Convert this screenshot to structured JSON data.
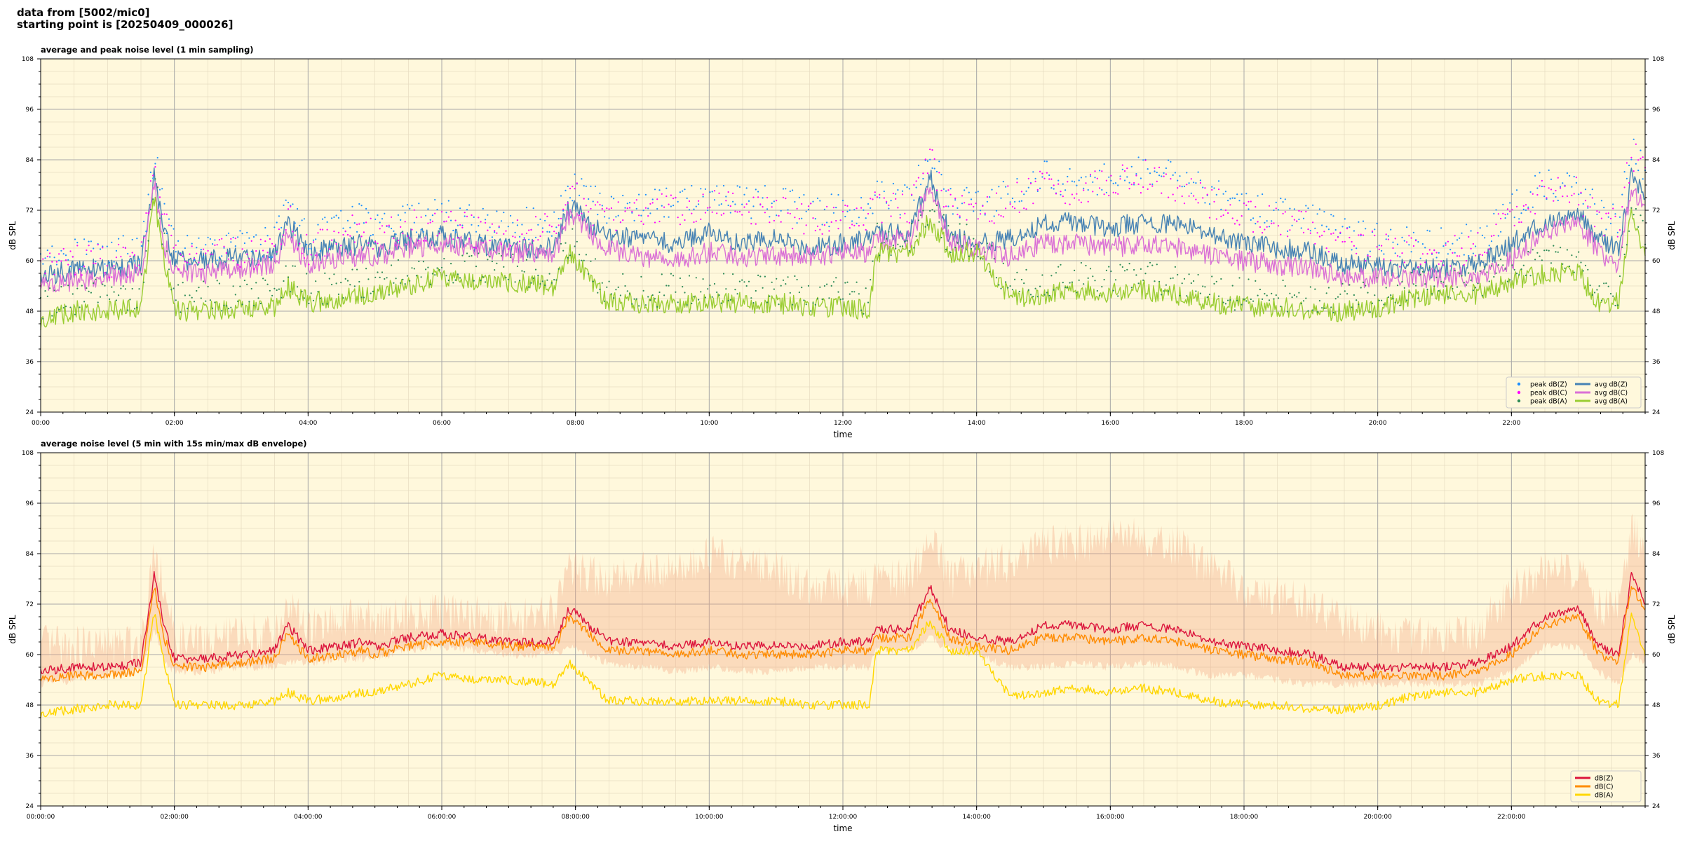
{
  "header": {
    "line1": "data from [5002/mic0]",
    "line2": "starting point is [20250409_000026]"
  },
  "colors": {
    "plot_background": "#fff8dc",
    "peak_z": "#1e90ff",
    "peak_c": "#ff00ff",
    "peak_a": "#2e8b57",
    "avg_z": "#4682b4",
    "avg_c": "#da70d6",
    "avg_a": "#9acd32",
    "z": "#dc143c",
    "c": "#ff8c00",
    "a": "#ffd700",
    "envelope": "#f4a582"
  },
  "chart_data": [
    {
      "type": "line",
      "title": "average and peak noise level (1 min sampling)",
      "xlabel": "time",
      "ylabel": "dB SPL",
      "ylim": [
        24,
        108
      ],
      "yticks": [
        24,
        36,
        48,
        60,
        72,
        84,
        96,
        108
      ],
      "xlim_hours": [
        0,
        24
      ],
      "xtick_labels": [
        "00:00",
        "02:00",
        "04:00",
        "06:00",
        "08:00",
        "10:00",
        "12:00",
        "14:00",
        "16:00",
        "18:00",
        "20:00",
        "22:00"
      ],
      "grid": true,
      "legend_position": "bottom-right",
      "x_hours": [
        0,
        0.5,
        1,
        1.5,
        1.7,
        1.85,
        2,
        2.5,
        3,
        3.5,
        3.7,
        4,
        4.5,
        4.8,
        5,
        5.5,
        6,
        6.5,
        7,
        7.7,
        7.9,
        8.5,
        9,
        9.5,
        10,
        10.5,
        11,
        11.5,
        12,
        12.4,
        12.5,
        13,
        13.3,
        13.6,
        14,
        14.5,
        15,
        15.5,
        16,
        16.5,
        17,
        17.5,
        18,
        18.5,
        19,
        19.5,
        20,
        20.5,
        21,
        21.5,
        22,
        22.5,
        23,
        23.3,
        23.6,
        23.8,
        24
      ],
      "series": [
        {
          "name": "avg dB(Z)",
          "kind": "line",
          "color": "#4682b4",
          "values": [
            56,
            58,
            58,
            59,
            80,
            66,
            60,
            60,
            61,
            61,
            69,
            62,
            63,
            64,
            63,
            65,
            66,
            64,
            63,
            63,
            73,
            65,
            66,
            64,
            67,
            64,
            65,
            63,
            64,
            65,
            67,
            66,
            80,
            66,
            64,
            65,
            69,
            69,
            68,
            69,
            69,
            66,
            64,
            63,
            62,
            59,
            59,
            58,
            58,
            59,
            64,
            69,
            71,
            65,
            63,
            80,
            75
          ]
        },
        {
          "name": "avg dB(C)",
          "kind": "line",
          "color": "#da70d6",
          "values": [
            54,
            55,
            56,
            57,
            78,
            64,
            57,
            57,
            58,
            59,
            66,
            59,
            61,
            61,
            61,
            63,
            64,
            63,
            62,
            62,
            71,
            63,
            61,
            60,
            62,
            61,
            61,
            61,
            62,
            62,
            65,
            65,
            77,
            65,
            63,
            61,
            64,
            64,
            63,
            64,
            63,
            61,
            60,
            59,
            58,
            56,
            56,
            56,
            56,
            56,
            60,
            67,
            69,
            62,
            58,
            78,
            72
          ]
        },
        {
          "name": "avg dB(A)",
          "kind": "line",
          "color": "#9acd32",
          "values": [
            46,
            48,
            48,
            49,
            75,
            60,
            48,
            48,
            49,
            49,
            54,
            50,
            51,
            52,
            52,
            54,
            56,
            55,
            55,
            54,
            62,
            50,
            50,
            50,
            50,
            50,
            50,
            49,
            49,
            48,
            62,
            62,
            70,
            62,
            62,
            51,
            52,
            53,
            52,
            53,
            52,
            50,
            49,
            49,
            48,
            48,
            49,
            51,
            52,
            52,
            55,
            57,
            57,
            50,
            50,
            72,
            62
          ]
        },
        {
          "name": "peak dB(Z)",
          "kind": "scatter",
          "color": "#1e90ff",
          "values": [
            61,
            62,
            62,
            62,
            85,
            72,
            63,
            63,
            64,
            64,
            72,
            65,
            68,
            70,
            68,
            70,
            71,
            69,
            68,
            70,
            78,
            72,
            74,
            74,
            76,
            74,
            74,
            72,
            72,
            73,
            75,
            74,
            86,
            74,
            73,
            76,
            80,
            79,
            80,
            82,
            80,
            76,
            73,
            71,
            70,
            66,
            65,
            64,
            64,
            65,
            72,
            78,
            78,
            72,
            70,
            88,
            82
          ]
        },
        {
          "name": "peak dB(C)",
          "kind": "scatter",
          "color": "#ff00ff",
          "values": [
            59,
            60,
            60,
            60,
            83,
            70,
            61,
            61,
            62,
            62,
            70,
            63,
            66,
            68,
            66,
            68,
            69,
            67,
            66,
            68,
            76,
            70,
            72,
            72,
            74,
            72,
            72,
            70,
            70,
            71,
            73,
            72,
            84,
            72,
            71,
            74,
            78,
            77,
            79,
            80,
            78,
            74,
            71,
            69,
            68,
            64,
            63,
            62,
            62,
            63,
            70,
            76,
            76,
            70,
            68,
            86,
            80
          ]
        },
        {
          "name": "peak dB(A)",
          "kind": "scatter",
          "color": "#2e8b57",
          "values": [
            50,
            51,
            52,
            52,
            78,
            64,
            51,
            52,
            52,
            53,
            57,
            53,
            54,
            55,
            55,
            57,
            59,
            58,
            58,
            57,
            65,
            53,
            53,
            53,
            53,
            53,
            53,
            52,
            52,
            51,
            65,
            65,
            73,
            65,
            65,
            54,
            55,
            56,
            55,
            56,
            55,
            53,
            52,
            52,
            51,
            51,
            52,
            54,
            55,
            55,
            58,
            60,
            60,
            53,
            53,
            75,
            65
          ]
        }
      ],
      "legend": [
        {
          "label": "peak dB(Z)",
          "kind": "dot",
          "color": "#1e90ff"
        },
        {
          "label": "peak dB(C)",
          "kind": "dot",
          "color": "#ff00ff"
        },
        {
          "label": "peak dB(A)",
          "kind": "dot",
          "color": "#2e8b57"
        },
        {
          "label": "avg dB(Z)",
          "kind": "line",
          "color": "#4682b4"
        },
        {
          "label": "avg dB(C)",
          "kind": "line",
          "color": "#da70d6"
        },
        {
          "label": "avg dB(A)",
          "kind": "line",
          "color": "#9acd32"
        }
      ]
    },
    {
      "type": "line",
      "title": "average noise level (5 min with 15s min/max dB envelope)",
      "xlabel": "time",
      "ylabel": "dB SPL",
      "ylim": [
        24,
        108
      ],
      "yticks": [
        24,
        36,
        48,
        60,
        72,
        84,
        96,
        108
      ],
      "xlim_hours": [
        0,
        24
      ],
      "xtick_labels": [
        "00:00:00",
        "02:00:00",
        "04:00:00",
        "06:00:00",
        "08:00:00",
        "10:00:00",
        "12:00:00",
        "14:00:00",
        "16:00:00",
        "18:00:00",
        "20:00:00",
        "22:00:00"
      ],
      "grid": true,
      "legend_position": "bottom-right",
      "x_hours": [
        0,
        0.5,
        1,
        1.5,
        1.7,
        1.85,
        2,
        2.5,
        3,
        3.5,
        3.7,
        4,
        4.5,
        4.8,
        5,
        5.5,
        6,
        6.5,
        7,
        7.7,
        7.9,
        8.5,
        9,
        9.5,
        10,
        10.5,
        11,
        11.5,
        12,
        12.4,
        12.5,
        13,
        13.3,
        13.6,
        14,
        14.5,
        15,
        15.5,
        16,
        16.5,
        17,
        17.5,
        18,
        18.5,
        19,
        19.5,
        20,
        20.5,
        21,
        21.5,
        22,
        22.5,
        23,
        23.3,
        23.6,
        23.8,
        24
      ],
      "envelope": {
        "color": "#f4a582",
        "min": [
          53,
          54,
          55,
          56,
          66,
          58,
          56,
          56,
          57,
          57,
          58,
          58,
          59,
          59,
          59,
          61,
          62,
          61,
          60,
          60,
          62,
          58,
          57,
          56,
          57,
          56,
          56,
          57,
          57,
          57,
          61,
          61,
          64,
          61,
          60,
          57,
          57,
          58,
          57,
          58,
          57,
          55,
          55,
          54,
          53,
          53,
          53,
          53,
          53,
          53,
          56,
          62,
          62,
          56,
          53,
          60,
          58
        ],
        "max": [
          62,
          62,
          62,
          63,
          86,
          76,
          63,
          63,
          65,
          65,
          72,
          66,
          68,
          70,
          68,
          70,
          70,
          70,
          68,
          70,
          80,
          78,
          80,
          80,
          84,
          82,
          80,
          76,
          76,
          76,
          78,
          78,
          88,
          78,
          80,
          82,
          86,
          86,
          88,
          88,
          86,
          80,
          76,
          74,
          72,
          68,
          66,
          64,
          64,
          66,
          75,
          80,
          80,
          72,
          70,
          90,
          84
        ]
      },
      "series": [
        {
          "name": "dB(Z)",
          "color": "#dc143c",
          "values": [
            56,
            57,
            57,
            58,
            79,
            66,
            59,
            59,
            60,
            61,
            67,
            61,
            62,
            63,
            62,
            64,
            65,
            64,
            63,
            63,
            71,
            63,
            63,
            62,
            63,
            62,
            62,
            62,
            63,
            63,
            66,
            66,
            76,
            66,
            64,
            63,
            67,
            67,
            66,
            67,
            66,
            63,
            62,
            61,
            60,
            57,
            57,
            57,
            57,
            58,
            62,
            69,
            71,
            62,
            60,
            79,
            72
          ]
        },
        {
          "name": "dB(C)",
          "color": "#ff8c00",
          "values": [
            54,
            55,
            55,
            56,
            76,
            64,
            57,
            57,
            58,
            59,
            65,
            59,
            60,
            61,
            60,
            62,
            63,
            63,
            62,
            62,
            69,
            61,
            61,
            60,
            61,
            60,
            60,
            60,
            61,
            61,
            64,
            64,
            73,
            64,
            62,
            61,
            64,
            64,
            63,
            64,
            63,
            61,
            60,
            59,
            58,
            55,
            55,
            55,
            55,
            56,
            60,
            67,
            69,
            60,
            58,
            77,
            70
          ]
        },
        {
          "name": "dB(A)",
          "color": "#ffd700",
          "values": [
            46,
            47,
            48,
            48,
            70,
            58,
            48,
            48,
            48,
            49,
            51,
            49,
            50,
            51,
            51,
            53,
            55,
            54,
            54,
            53,
            58,
            49,
            49,
            49,
            49,
            49,
            49,
            48,
            48,
            48,
            61,
            61,
            68,
            61,
            61,
            50,
            51,
            52,
            51,
            52,
            51,
            49,
            48,
            48,
            47,
            47,
            48,
            50,
            51,
            51,
            54,
            55,
            55,
            49,
            48,
            70,
            60
          ]
        }
      ],
      "legend": [
        {
          "label": "dB(Z)",
          "kind": "line",
          "color": "#dc143c"
        },
        {
          "label": "dB(C)",
          "kind": "line",
          "color": "#ff8c00"
        },
        {
          "label": "dB(A)",
          "kind": "line",
          "color": "#ffd700"
        }
      ]
    }
  ]
}
